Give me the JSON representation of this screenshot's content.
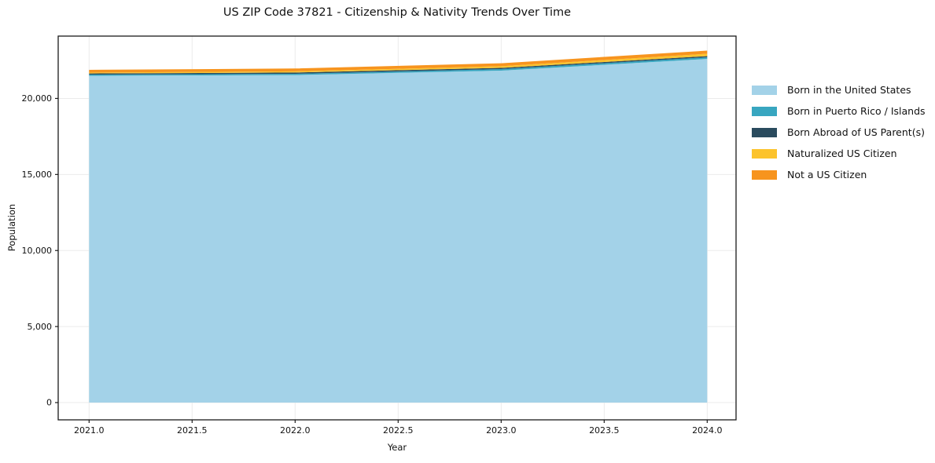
{
  "chart_data": {
    "type": "area",
    "stacked": true,
    "title": "US ZIP Code 37821 - Citizenship & Nativity Trends Over Time",
    "xlabel": "Year",
    "ylabel": "Population",
    "x": [
      2021,
      2022,
      2023,
      2024
    ],
    "series": [
      {
        "name": "Born in the United States",
        "color": "#A3D2E8",
        "values": [
          21490,
          21540,
          21830,
          22600
        ]
      },
      {
        "name": "Born in Puerto Rico / Islands",
        "color": "#38A6C0",
        "values": [
          80,
          85,
          100,
          105
        ]
      },
      {
        "name": "Born Abroad of US Parent(s)",
        "color": "#2A4B5E",
        "values": [
          75,
          80,
          80,
          80
        ]
      },
      {
        "name": "Naturalized US Citizen",
        "color": "#FCC32C",
        "values": [
          55,
          80,
          110,
          155
        ]
      },
      {
        "name": "Not a US Citizen",
        "color": "#F7941E",
        "values": [
          180,
          185,
          195,
          205
        ]
      }
    ],
    "x_ticks": [
      2021.0,
      2021.5,
      2022.0,
      2022.5,
      2023.0,
      2023.5,
      2024.0
    ],
    "x_tick_labels": [
      "2021.0",
      "2021.5",
      "2022.0",
      "2022.5",
      "2023.0",
      "2023.5",
      "2024.0"
    ],
    "y_ticks": [
      0,
      5000,
      10000,
      15000,
      20000
    ],
    "y_tick_labels": [
      "0",
      "5,000",
      "10,000",
      "15,000",
      "20,000"
    ],
    "xlim": [
      2020.85,
      2024.14
    ],
    "ylim": [
      -1135,
      24100
    ],
    "grid": true,
    "legend_position": "right",
    "colors": {
      "background": "#ffffff",
      "frame": "#1a1a1a",
      "gridline": "#ebebeb",
      "text": "#111111"
    }
  }
}
